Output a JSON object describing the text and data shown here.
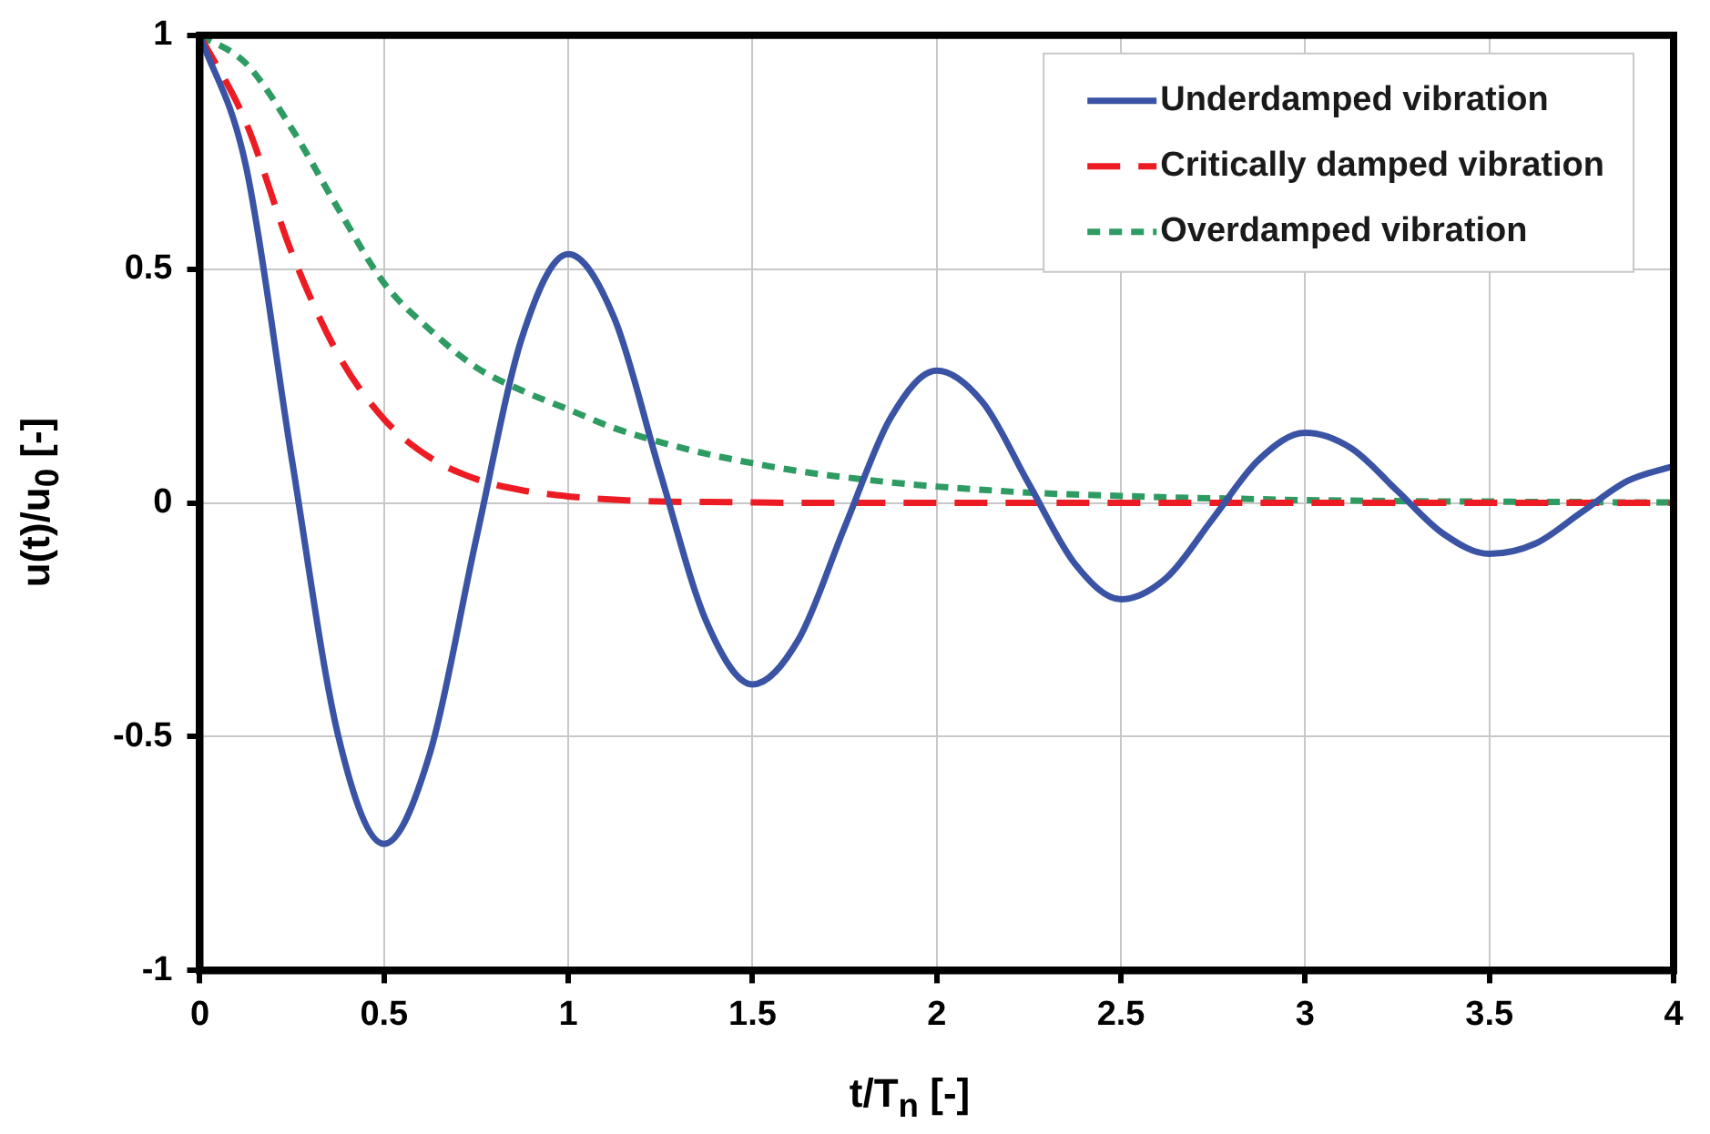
{
  "chart_data": {
    "type": "line",
    "xlabel": "t/T$_{n}$ [-]",
    "ylabel": "u(t)/u$_{0}$ [-]",
    "x": [
      0,
      0.125,
      0.25,
      0.375,
      0.5,
      0.625,
      0.75,
      0.875,
      1,
      1.125,
      1.25,
      1.375,
      1.5,
      1.625,
      1.75,
      1.875,
      2,
      2.125,
      2.25,
      2.375,
      2.5,
      2.625,
      2.75,
      2.875,
      3,
      3.125,
      3.25,
      3.375,
      3.5,
      3.625,
      3.75,
      3.875,
      4
    ],
    "series": [
      {
        "name": "Underdamped vibration",
        "color": "#3a53a4",
        "line_style": "solid",
        "values": [
          1,
          0.721,
          0.092,
          -0.496,
          -0.729,
          -0.534,
          -0.077,
          0.355,
          0.532,
          0.395,
          0.063,
          -0.254,
          -0.388,
          -0.292,
          -0.052,
          0.182,
          0.283,
          0.215,
          0.041,
          -0.13,
          -0.206,
          -0.159,
          -0.033,
          0.093,
          0.15,
          0.117,
          0.026,
          -0.066,
          -0.109,
          -0.087,
          -0.02,
          0.047,
          0.079
        ]
      },
      {
        "name": "Critically damped vibration",
        "color": "#ed1c24",
        "line_style": "dashed",
        "values": [
          1,
          0.814,
          0.534,
          0.318,
          0.179,
          0.097,
          0.051,
          0.027,
          0.014,
          0.007,
          0.003,
          0.002,
          0.001,
          0,
          0,
          0,
          0,
          0,
          0,
          0,
          0,
          0,
          0,
          0,
          0,
          0,
          0,
          0,
          0,
          0,
          0,
          0,
          0
        ]
      },
      {
        "name": "Overdamped vibration",
        "color": "#2e9b62",
        "line_style": "dotted",
        "values": [
          1,
          0.94,
          0.8,
          0.63,
          0.47,
          0.37,
          0.29,
          0.24,
          0.2,
          0.16,
          0.13,
          0.105,
          0.085,
          0.068,
          0.055,
          0.044,
          0.035,
          0.028,
          0.022,
          0.018,
          0.015,
          0.012,
          0.01,
          0.008,
          0.006,
          0.005,
          0.004,
          0.003,
          0.003,
          0.002,
          0.002,
          0.001,
          0.001
        ]
      }
    ],
    "xlim": [
      0,
      4
    ],
    "xticks": [
      0,
      0.5,
      1,
      1.5,
      2,
      2.5,
      3,
      3.5,
      4
    ],
    "ylim": [
      -1,
      1
    ],
    "yticks": [
      -1,
      -0.5,
      0,
      0.5,
      1
    ],
    "grid": true,
    "legend": "top right",
    "marker": "none"
  }
}
